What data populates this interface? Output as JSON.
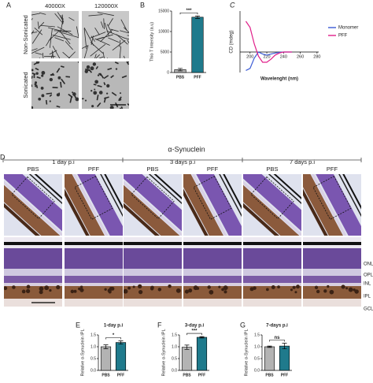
{
  "panels": {
    "A": {
      "label": "A",
      "columns": [
        "40000X",
        "120000X"
      ],
      "rows": [
        "Non-Sonicated",
        "Sonicated"
      ]
    },
    "D": {
      "label": "D",
      "title": "α-Synuclein",
      "groups": [
        {
          "label": "1 day p.i",
          "columns": [
            "PBS",
            "PFF"
          ]
        },
        {
          "label": "3 days p.i",
          "columns": [
            "PBS",
            "PFF"
          ]
        },
        {
          "label": "7 days p.i",
          "columns": [
            "PBS",
            "PFF"
          ]
        }
      ],
      "layers": [
        "ONL",
        "OPL",
        "INL",
        "IPL",
        "GCL"
      ]
    }
  },
  "chart_data": [
    {
      "type": "bar",
      "panel_label": "B",
      "y_label": "Thio T Intensity (a.u)",
      "categories": [
        "PBS",
        "PFF"
      ],
      "values": [
        700,
        13500
      ],
      "errors": [
        300,
        300
      ],
      "colors": [
        "#b3b3b3",
        "#1f7a8c"
      ],
      "ylim": [
        0,
        15000
      ],
      "yticks": [
        0,
        5000,
        10000,
        15000
      ],
      "annotation": "***"
    },
    {
      "type": "line",
      "panel_label": "C",
      "y_label": "CD (mdeg)",
      "x_label": "Wavelenght (nm)",
      "x": [
        195,
        200,
        205,
        210,
        215,
        220,
        225,
        230,
        235,
        240,
        250
      ],
      "series": [
        {
          "name": "Monomer",
          "color": "#3b5bd6",
          "values": [
            -9,
            -8,
            -3,
            0,
            -1,
            -1.5,
            -1,
            -0.5,
            -0.2,
            0,
            0
          ]
        },
        {
          "name": "PFF",
          "color": "#e0208a",
          "values": [
            15,
            12,
            4,
            -2,
            -5,
            -5,
            -3.5,
            -1.5,
            -0.5,
            0,
            0
          ]
        }
      ],
      "xlim": [
        188,
        282
      ],
      "ylim": [
        -10,
        20
      ],
      "xticks": [
        200,
        220,
        240,
        260,
        280
      ],
      "legend": "right"
    },
    {
      "type": "bar",
      "panel_label": "E",
      "title": "1-day p.i",
      "y_label": "Relative α-Synuclein IPL",
      "categories": [
        "PBS",
        "PFF"
      ],
      "values": [
        1.0,
        1.18
      ],
      "errors": [
        0.08,
        0.07
      ],
      "colors": [
        "#b3b3b3",
        "#1f7a8c"
      ],
      "ylim": [
        0,
        1.5
      ],
      "yticks": [
        {
          "value": 0,
          "label": "0.0"
        },
        0.5,
        {
          "value": 1,
          "label": "1.0"
        },
        1.5
      ],
      "annotation": "*"
    },
    {
      "type": "bar",
      "panel_label": "F",
      "title": "3-day p.i",
      "y_label": "Relative α-Synuclein IPL",
      "categories": [
        "PBS",
        "PFF"
      ],
      "values": [
        0.98,
        1.4
      ],
      "errors": [
        0.09,
        0.03
      ],
      "colors": [
        "#b3b3b3",
        "#1f7a8c"
      ],
      "ylim": [
        0,
        1.5
      ],
      "yticks": [
        {
          "value": 0,
          "label": "0.0"
        },
        0.5,
        {
          "value": 1,
          "label": "1.0"
        },
        1.5
      ],
      "annotation": "***"
    },
    {
      "type": "bar",
      "panel_label": "G",
      "title": "7-days p.i",
      "y_label": "Relative α-Synuclein IPL",
      "categories": [
        "PBS",
        "PFF"
      ],
      "values": [
        1.0,
        1.03
      ],
      "errors": [
        0.03,
        0.12
      ],
      "colors": [
        "#b3b3b3",
        "#1f7a8c"
      ],
      "ylim": [
        0,
        1.5
      ],
      "yticks": [
        {
          "value": 0,
          "label": "0.0"
        },
        0.5,
        {
          "value": 1,
          "label": "1.0"
        },
        1.5
      ],
      "annotation": "ns"
    }
  ]
}
